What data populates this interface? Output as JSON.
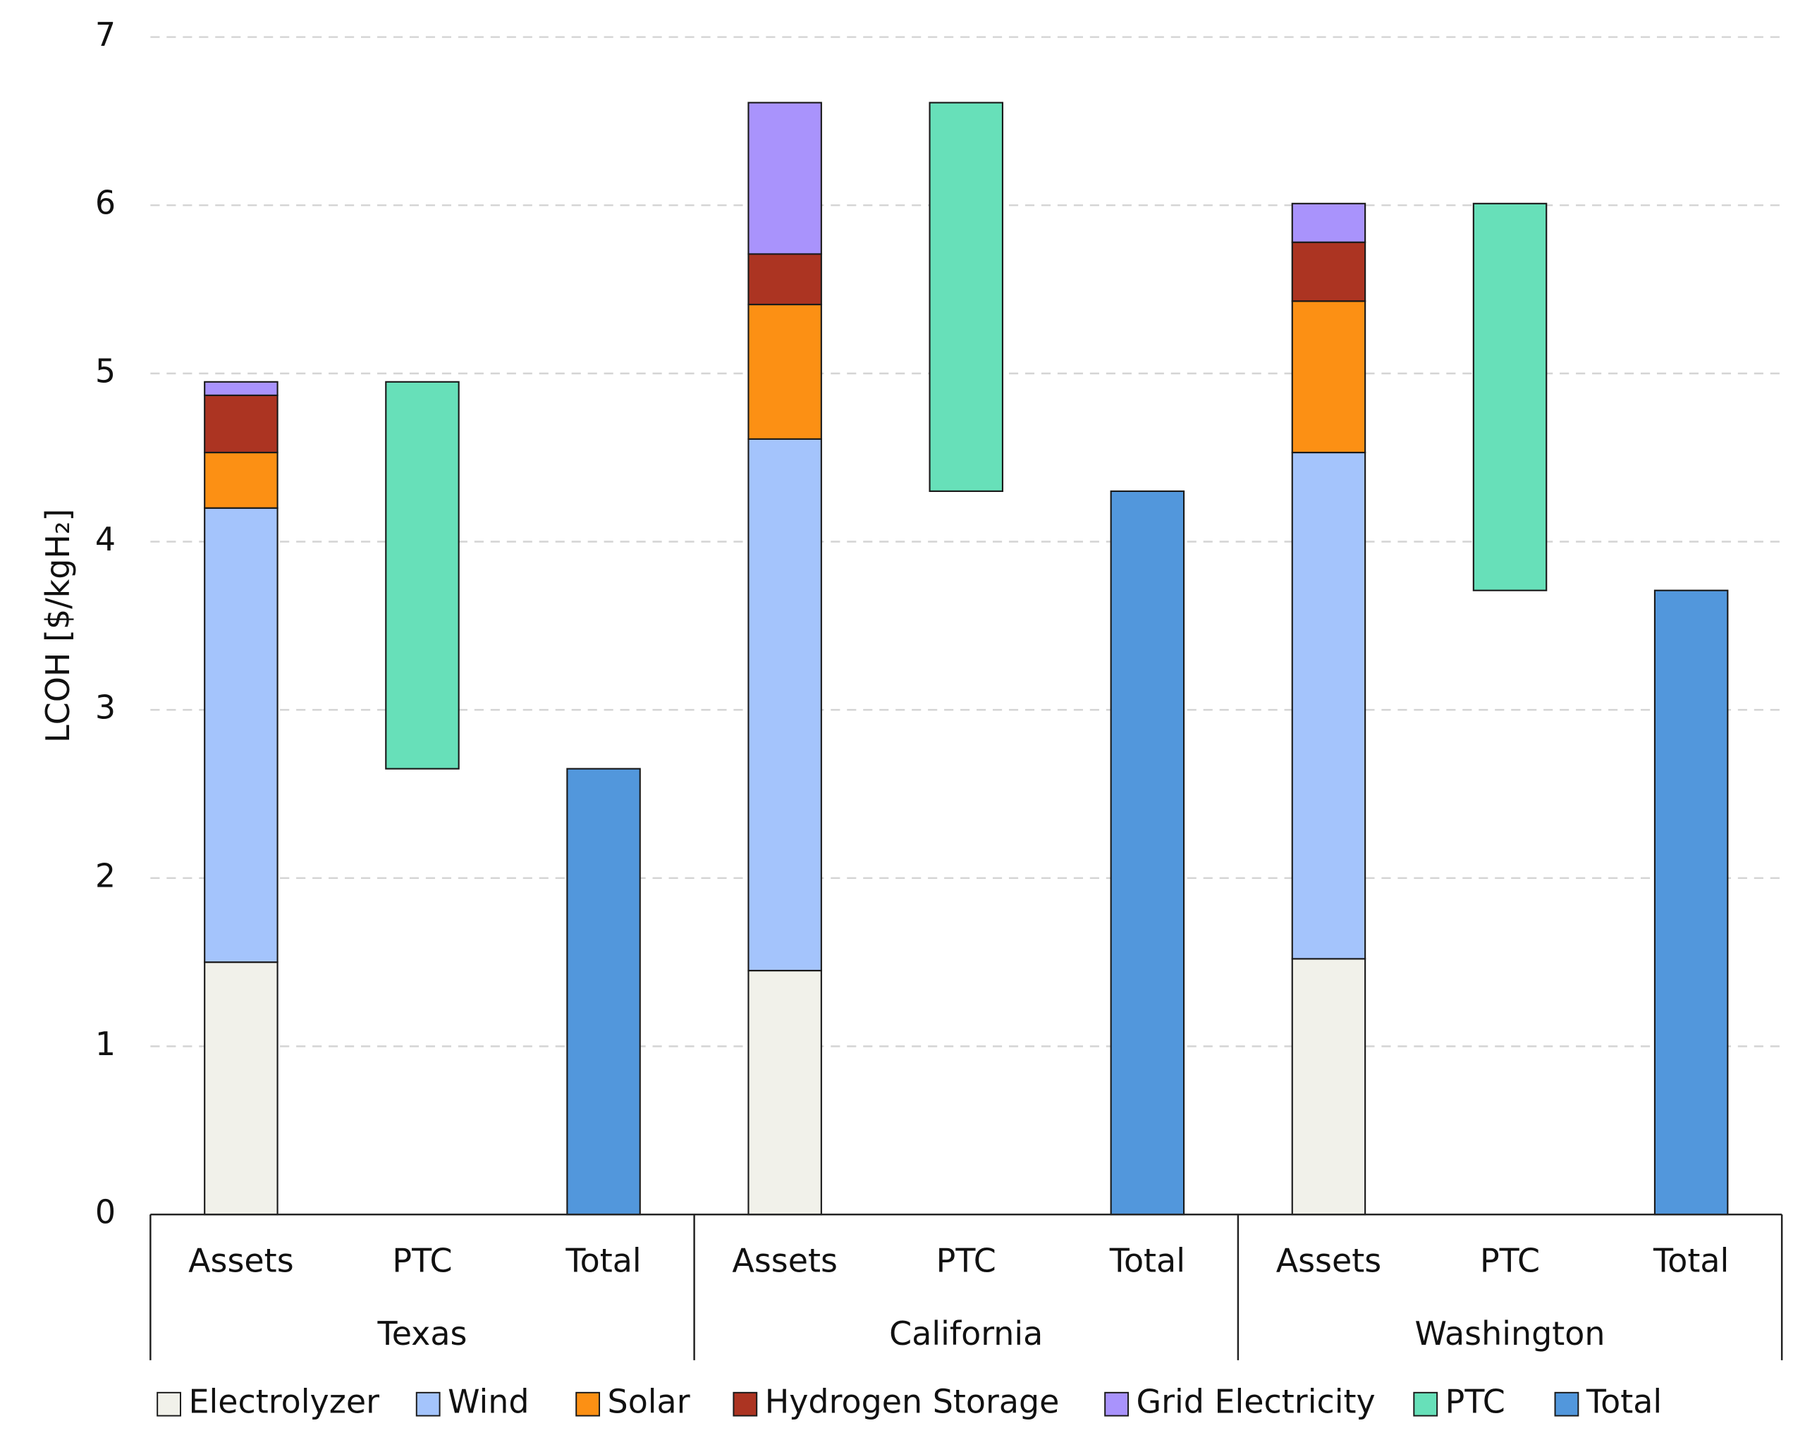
{
  "chart_data": {
    "type": "bar",
    "ylabel": "LCOH [$/kgH₂]",
    "groups": [
      "Texas",
      "California",
      "Washington"
    ],
    "categories": [
      "Assets",
      "PTC",
      "Total",
      "Assets",
      "PTC",
      "Total",
      "Assets",
      "PTC",
      "Total"
    ],
    "series": [
      {
        "name": "Electrolyzer",
        "color": "#f1f1ea",
        "values": [
          1.5,
          null,
          null,
          1.45,
          null,
          null,
          1.52,
          null,
          null
        ]
      },
      {
        "name": "Wind",
        "color": "#a4c4fc",
        "values": [
          2.7,
          null,
          null,
          3.16,
          null,
          null,
          3.01,
          null,
          null
        ]
      },
      {
        "name": "Solar",
        "color": "#fc9014",
        "values": [
          0.33,
          null,
          null,
          0.8,
          null,
          null,
          0.9,
          null,
          null
        ]
      },
      {
        "name": "Hydrogen Storage",
        "color": "#ac3422",
        "values": [
          0.34,
          null,
          null,
          0.3,
          null,
          null,
          0.35,
          null,
          null
        ]
      },
      {
        "name": "Grid Electricity",
        "color": "#a993fc",
        "values": [
          0.08,
          null,
          null,
          0.9,
          null,
          null,
          0.23,
          null,
          null
        ]
      },
      {
        "name": "PTC",
        "color": "#67e0b9",
        "values": [
          null,
          -2.3,
          null,
          null,
          -2.31,
          null,
          null,
          -2.3,
          null
        ]
      },
      {
        "name": "Total",
        "color": "#5297dc",
        "values": [
          null,
          null,
          2.65,
          null,
          null,
          4.3,
          null,
          null,
          3.71
        ]
      }
    ],
    "ylim": [
      0,
      7
    ],
    "yticks": [
      0,
      1,
      2,
      3,
      4,
      5,
      6,
      7
    ],
    "grid": true,
    "legend": "bottom"
  }
}
